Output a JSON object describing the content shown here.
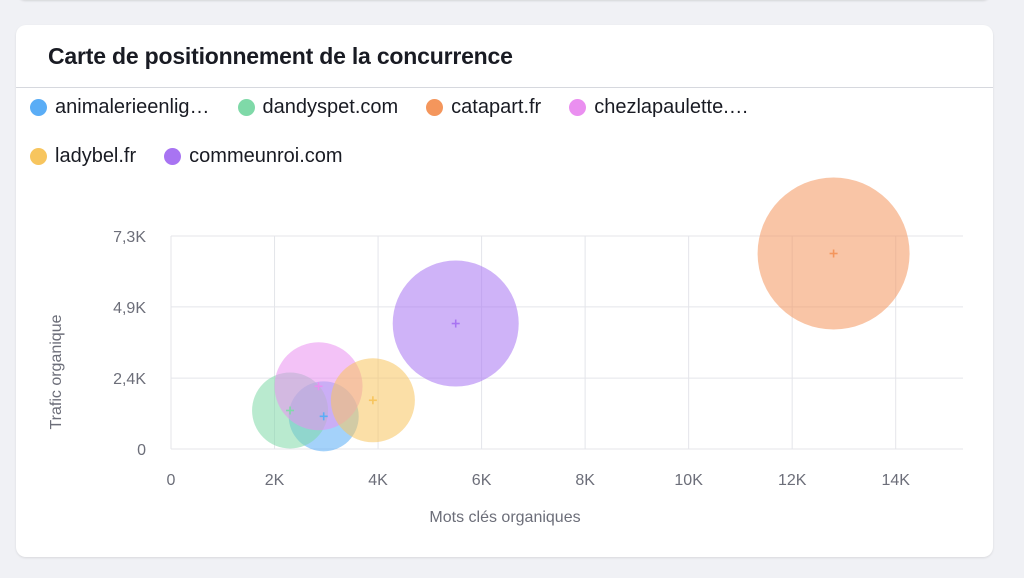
{
  "card": {
    "title": "Carte de positionnement de la concurrence"
  },
  "legend": [
    {
      "label": "animalerieenlig…",
      "color": "#5aadf6"
    },
    {
      "label": "dandyspet.com",
      "color": "#7fd9a8"
    },
    {
      "label": "catapart.fr",
      "color": "#f4965c"
    },
    {
      "label": "chezlapaulette.…",
      "color": "#ea8ff0"
    },
    {
      "label": "ladybel.fr",
      "color": "#f7c55e"
    },
    {
      "label": "commeunroi.com",
      "color": "#a874f2"
    }
  ],
  "chart_data": {
    "type": "scatter",
    "xlabel": "Mots clés organiques",
    "ylabel": "Trafic organique",
    "xlim": [
      0,
      15300
    ],
    "ylim": [
      0,
      7300
    ],
    "x_ticks": [
      {
        "value": 0,
        "label": "0"
      },
      {
        "value": 2000,
        "label": "2K"
      },
      {
        "value": 4000,
        "label": "4K"
      },
      {
        "value": 6000,
        "label": "6K"
      },
      {
        "value": 8000,
        "label": "8K"
      },
      {
        "value": 10000,
        "label": "10K"
      },
      {
        "value": 12000,
        "label": "12K"
      },
      {
        "value": 14000,
        "label": "14K"
      }
    ],
    "y_ticks": [
      {
        "value": 0,
        "label": "0"
      },
      {
        "value": 2430,
        "label": "2,4K"
      },
      {
        "value": 4870,
        "label": "4,9K"
      },
      {
        "value": 7300,
        "label": "7,3K"
      }
    ],
    "grid": true,
    "legend_placement": "top-left",
    "series": [
      {
        "name": "animalerieenlig…",
        "x": 2950,
        "y": 1120,
        "size": 35,
        "color": "#5aadf6"
      },
      {
        "name": "dandyspet.com",
        "x": 2300,
        "y": 1320,
        "size": 38,
        "color": "#7fd9a8"
      },
      {
        "name": "catapart.fr",
        "x": 12800,
        "y": 6700,
        "size": 76,
        "color": "#f4965c"
      },
      {
        "name": "chezlapaulette.…",
        "x": 2850,
        "y": 2150,
        "size": 44,
        "color": "#ea8ff0"
      },
      {
        "name": "ladybel.fr",
        "x": 3900,
        "y": 1670,
        "size": 42,
        "color": "#f7c55e"
      },
      {
        "name": "commeunroi.com",
        "x": 5500,
        "y": 4300,
        "size": 63,
        "color": "#a874f2"
      }
    ]
  }
}
